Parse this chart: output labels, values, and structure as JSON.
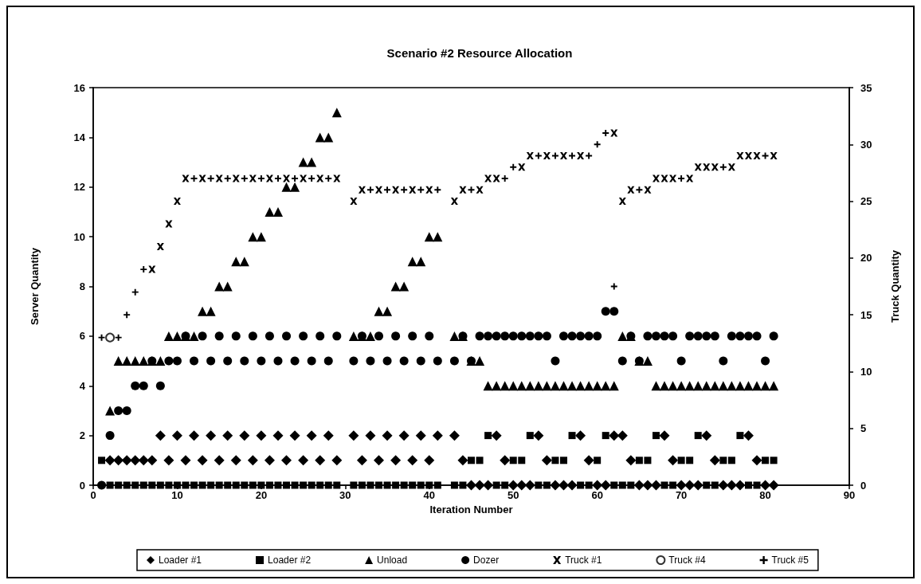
{
  "chart_data": {
    "type": "scatter",
    "title": "Scenario #2 Resource Allocation",
    "xlabel": "Iteration Number",
    "ylabel": "Server Quantity",
    "y2label": "Truck Quantity",
    "xlim": [
      0,
      90
    ],
    "xticks": [
      0,
      10,
      20,
      30,
      40,
      50,
      60,
      70,
      80,
      90
    ],
    "ylim": [
      0,
      16
    ],
    "yticks": [
      0,
      2,
      4,
      6,
      8,
      10,
      12,
      14,
      16
    ],
    "y2lim": [
      0,
      35
    ],
    "y2ticks": [
      0,
      5,
      10,
      15,
      20,
      25,
      30,
      35
    ],
    "legend": "bottom",
    "series": [
      {
        "name": "Loader #1",
        "color": "#000000",
        "marker": "diamond",
        "x": [
          2,
          3,
          4,
          5,
          6,
          7,
          8,
          9,
          10,
          11,
          12,
          13,
          14,
          15,
          16,
          17,
          18,
          19,
          20,
          21,
          22,
          23,
          24,
          25,
          26,
          27,
          28,
          29,
          31,
          32,
          33,
          34,
          35,
          36,
          37,
          38,
          39,
          40,
          41,
          43,
          44,
          45,
          46,
          47,
          48,
          49,
          50,
          51,
          52,
          53,
          54,
          55,
          56,
          57,
          58,
          59,
          60,
          61,
          62,
          63,
          64,
          65,
          66,
          67,
          68,
          69,
          70,
          71,
          72,
          73,
          74,
          75,
          76,
          77,
          78,
          79,
          80,
          81
        ],
        "values": [
          1,
          1,
          1,
          1,
          1,
          1,
          2,
          1,
          2,
          1,
          2,
          1,
          2,
          1,
          2,
          1,
          2,
          1,
          2,
          1,
          2,
          1,
          2,
          1,
          2,
          1,
          2,
          1,
          2,
          1,
          2,
          1,
          2,
          1,
          2,
          1,
          2,
          1,
          2,
          2,
          1,
          0,
          0,
          0,
          2,
          1,
          0,
          0,
          0,
          2,
          1,
          0,
          0,
          0,
          2,
          1,
          0,
          0,
          2,
          2,
          1,
          0,
          0,
          0,
          2,
          1,
          0,
          0,
          0,
          2,
          1,
          0,
          0,
          0,
          2,
          1,
          0,
          0
        ]
      },
      {
        "name": "Loader #2",
        "color": "#000000",
        "marker": "square",
        "x": [
          1,
          2,
          3,
          4,
          5,
          6,
          7,
          8,
          9,
          10,
          11,
          12,
          13,
          14,
          15,
          16,
          17,
          18,
          19,
          20,
          21,
          22,
          23,
          24,
          25,
          26,
          27,
          28,
          29,
          31,
          32,
          33,
          34,
          35,
          36,
          37,
          38,
          39,
          40,
          41,
          43,
          44,
          45,
          46,
          47,
          48,
          49,
          50,
          51,
          52,
          53,
          54,
          55,
          56,
          57,
          58,
          59,
          60,
          61,
          62,
          63,
          64,
          65,
          66,
          67,
          68,
          69,
          70,
          71,
          72,
          73,
          74,
          75,
          76,
          77,
          78,
          79,
          80,
          81
        ],
        "values": [
          1,
          0,
          0,
          0,
          0,
          0,
          0,
          0,
          0,
          0,
          0,
          0,
          0,
          0,
          0,
          0,
          0,
          0,
          0,
          0,
          0,
          0,
          0,
          0,
          0,
          0,
          0,
          0,
          0,
          0,
          0,
          0,
          0,
          0,
          0,
          0,
          0,
          0,
          0,
          0,
          0,
          0,
          1,
          1,
          2,
          0,
          0,
          1,
          1,
          2,
          0,
          0,
          1,
          1,
          2,
          0,
          0,
          1,
          2,
          0,
          0,
          0,
          1,
          1,
          2,
          0,
          0,
          1,
          1,
          2,
          0,
          0,
          1,
          1,
          2,
          0,
          0,
          1,
          1
        ]
      },
      {
        "name": "Unload",
        "color": "#000000",
        "marker": "triangle",
        "x": [
          2,
          3,
          4,
          5,
          6,
          7,
          8,
          9,
          10,
          11,
          12,
          13,
          14,
          15,
          16,
          17,
          18,
          19,
          20,
          21,
          22,
          23,
          24,
          25,
          26,
          27,
          28,
          29,
          31,
          32,
          33,
          34,
          35,
          36,
          37,
          38,
          39,
          40,
          41,
          43,
          44,
          45,
          46,
          47,
          48,
          49,
          50,
          51,
          52,
          53,
          54,
          55,
          56,
          57,
          58,
          59,
          60,
          61,
          62,
          63,
          64,
          65,
          66,
          67,
          68,
          69,
          70,
          71,
          72,
          73,
          74,
          75,
          76,
          77,
          78,
          79,
          80,
          81
        ],
        "values": [
          3,
          5,
          5,
          5,
          5,
          5,
          5,
          6,
          6,
          6,
          6,
          7,
          7,
          8,
          8,
          9,
          9,
          10,
          10,
          11,
          11,
          12,
          12,
          13,
          13,
          14,
          14,
          15,
          6,
          6,
          6,
          7,
          7,
          8,
          8,
          9,
          9,
          10,
          10,
          6,
          6,
          5,
          5,
          4,
          4,
          4,
          4,
          4,
          4,
          4,
          4,
          4,
          4,
          4,
          4,
          4,
          4,
          4,
          4,
          6,
          6,
          5,
          5,
          4,
          4,
          4,
          4,
          4,
          4,
          4,
          4,
          4,
          4,
          4,
          4,
          4,
          4,
          4
        ]
      },
      {
        "name": "Dozer",
        "color": "#000000",
        "marker": "circle",
        "x": [
          1,
          2,
          3,
          4,
          5,
          6,
          7,
          8,
          9,
          10,
          11,
          12,
          13,
          14,
          15,
          16,
          17,
          18,
          19,
          20,
          21,
          22,
          23,
          24,
          25,
          26,
          27,
          28,
          29,
          31,
          32,
          33,
          34,
          35,
          36,
          37,
          38,
          39,
          40,
          41,
          43,
          44,
          45,
          46,
          47,
          48,
          49,
          50,
          51,
          52,
          53,
          54,
          55,
          56,
          57,
          58,
          59,
          60,
          61,
          62,
          63,
          64,
          65,
          66,
          67,
          68,
          69,
          70,
          71,
          72,
          73,
          74,
          75,
          76,
          77,
          78,
          79,
          80,
          81
        ],
        "values": [
          0,
          2,
          3,
          3,
          4,
          4,
          5,
          4,
          5,
          5,
          6,
          5,
          6,
          5,
          6,
          5,
          6,
          5,
          6,
          5,
          6,
          5,
          6,
          5,
          6,
          5,
          6,
          5,
          6,
          5,
          6,
          5,
          6,
          5,
          6,
          5,
          6,
          5,
          6,
          5,
          5,
          6,
          5,
          6,
          6,
          6,
          6,
          6,
          6,
          6,
          6,
          6,
          5,
          6,
          6,
          6,
          6,
          6,
          7,
          7,
          5,
          6,
          5,
          6,
          6,
          6,
          6,
          5,
          6,
          6,
          6,
          6,
          5,
          6,
          6,
          6,
          6,
          5,
          6
        ]
      },
      {
        "name": "Truck #1",
        "color": "#000000",
        "marker": "cross",
        "axis": "y2",
        "x": [
          7,
          8,
          9,
          10,
          11,
          13,
          15,
          17,
          19,
          21,
          23,
          25,
          27,
          29,
          31,
          32,
          34,
          36,
          38,
          40,
          43,
          44,
          46,
          47,
          48,
          51,
          52,
          54,
          56,
          58,
          62,
          63,
          64,
          66,
          67,
          68,
          69,
          71,
          72,
          73,
          74,
          76,
          77,
          78,
          79,
          81
        ],
        "values": [
          19,
          21,
          23,
          25,
          27,
          27,
          27,
          27,
          27,
          27,
          27,
          27,
          27,
          27,
          25,
          26,
          26,
          26,
          26,
          26,
          25,
          26,
          26,
          27,
          27,
          28,
          29,
          29,
          29,
          29,
          31,
          25,
          26,
          26,
          27,
          27,
          27,
          27,
          28,
          28,
          28,
          28,
          29,
          29,
          29,
          29
        ]
      },
      {
        "name": "Truck #4",
        "color": "#000000",
        "marker": "circle-open",
        "axis": "y2",
        "x": [
          2
        ],
        "values": [
          13
        ]
      },
      {
        "name": "Truck #5",
        "color": "#000000",
        "marker": "plus",
        "axis": "y2",
        "x": [
          1,
          3,
          4,
          5,
          6,
          12,
          14,
          16,
          18,
          20,
          22,
          24,
          26,
          28,
          33,
          35,
          37,
          39,
          41,
          45,
          49,
          50,
          53,
          55,
          57,
          59,
          60,
          61,
          62,
          65,
          70,
          75,
          80
        ],
        "values": [
          13,
          13,
          15,
          17,
          19,
          27,
          27,
          27,
          27,
          27,
          27,
          27,
          27,
          27,
          26,
          26,
          26,
          26,
          26,
          26,
          27,
          28,
          29,
          29,
          29,
          29,
          30,
          31,
          17.5,
          26,
          27,
          28,
          29
        ]
      }
    ]
  }
}
